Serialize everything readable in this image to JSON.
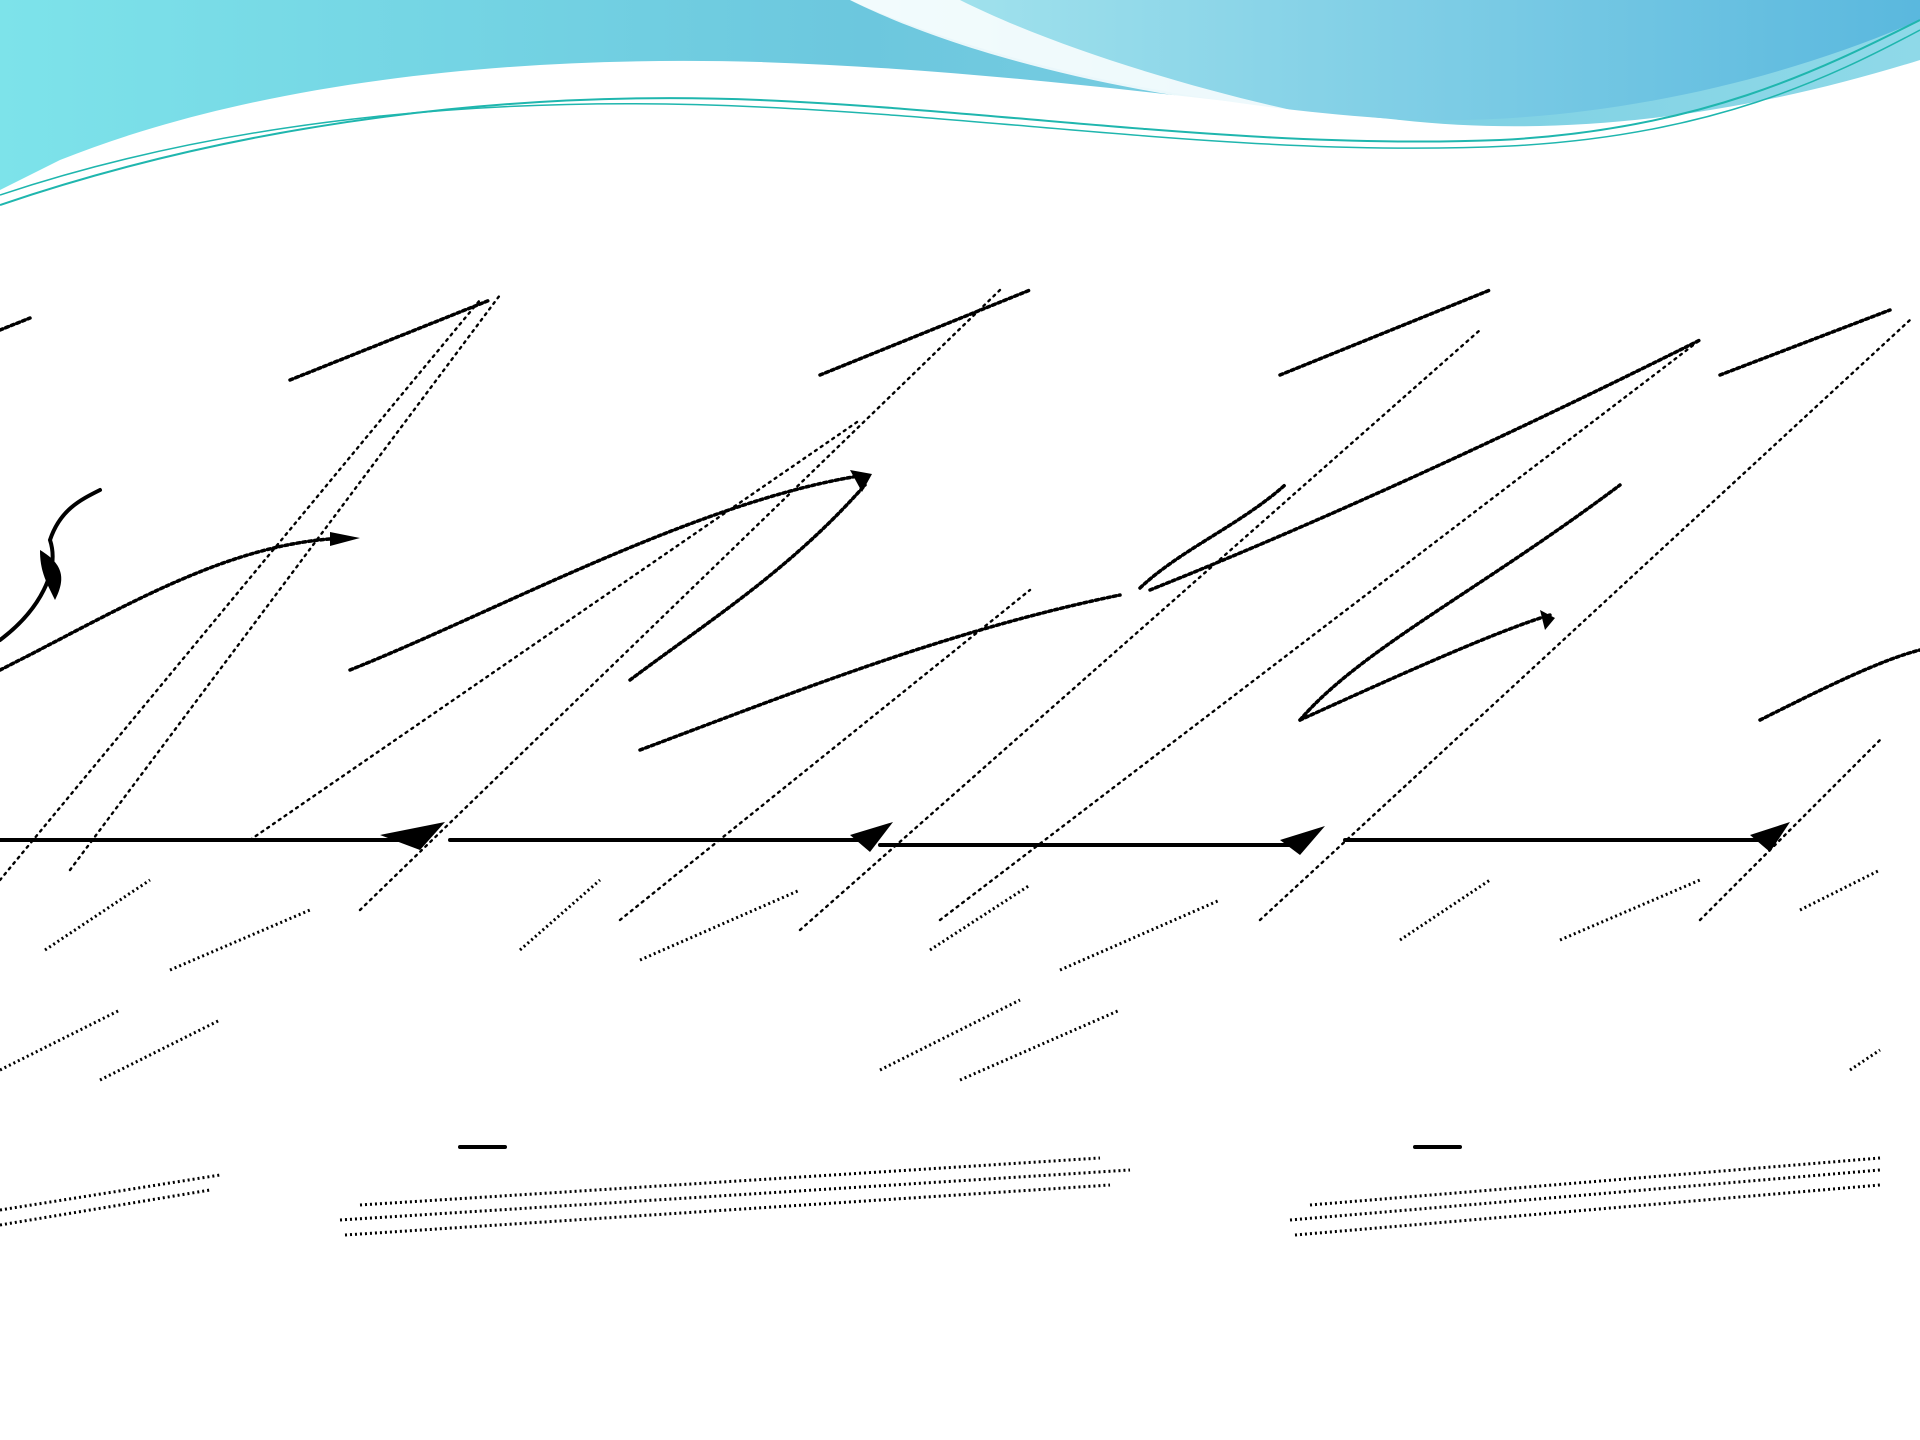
{
  "slide": {
    "theme_colors": {
      "wave_dark": "#4fb7d6",
      "wave_light": "#7de3ea",
      "wave_line": "#1fb6ae",
      "ink": "#000000",
      "background": "#ffffff"
    },
    "figure": {
      "description_icon": "handwriting-figure",
      "rows": 4
    }
  }
}
